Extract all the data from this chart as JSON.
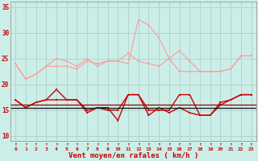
{
  "bg_color": "#cceee8",
  "grid_color": "#b0d0cc",
  "xlabel": "Vent moyen/en rafales ( km/h )",
  "xlim": [
    -0.5,
    23.5
  ],
  "ylim": [
    9,
    36
  ],
  "yticks": [
    10,
    15,
    20,
    25,
    30,
    35
  ],
  "xticks": [
    0,
    1,
    2,
    3,
    4,
    5,
    6,
    7,
    8,
    9,
    10,
    11,
    12,
    13,
    14,
    15,
    16,
    17,
    18,
    19,
    20,
    21,
    22,
    23
  ],
  "hours": [
    0,
    1,
    2,
    3,
    4,
    5,
    6,
    7,
    8,
    9,
    10,
    11,
    12,
    13,
    14,
    15,
    16,
    17,
    18,
    19,
    20,
    21,
    22,
    23
  ],
  "line1": [
    24.0,
    21.0,
    22.0,
    23.5,
    25.0,
    24.5,
    23.5,
    25.0,
    23.5,
    24.5,
    24.5,
    24.0,
    32.5,
    31.5,
    29.0,
    25.0,
    26.5,
    24.5,
    22.5,
    22.5,
    22.5,
    23.0,
    25.5,
    25.5
  ],
  "line2": [
    24.0,
    21.0,
    22.0,
    23.5,
    23.5,
    23.5,
    23.0,
    24.5,
    24.0,
    24.5,
    24.5,
    26.0,
    24.5,
    24.0,
    23.5,
    25.0,
    22.5,
    22.5,
    22.5,
    22.5,
    22.5,
    23.0,
    25.5,
    25.5
  ],
  "line3": [
    17.0,
    15.5,
    16.5,
    17.0,
    19.0,
    17.0,
    17.0,
    14.5,
    15.5,
    15.5,
    13.0,
    18.0,
    18.0,
    14.0,
    15.5,
    14.5,
    15.5,
    14.5,
    14.0,
    14.0,
    16.5,
    17.0,
    18.0,
    18.0
  ],
  "line4": [
    17.0,
    15.5,
    16.5,
    17.0,
    17.0,
    17.0,
    17.0,
    15.0,
    15.5,
    15.0,
    15.0,
    18.0,
    18.0,
    15.0,
    15.0,
    15.0,
    18.0,
    18.0,
    14.0,
    14.0,
    16.0,
    17.0,
    18.0,
    18.0
  ],
  "line5_flat": 15.5,
  "line6_flat": 16.0,
  "color_light": "#ff9999",
  "color_dark": "#cc0000",
  "color_black": "#111111",
  "color_darkred": "#990000",
  "lw_light": 0.8,
  "lw_dark": 1.0,
  "lw_flat": 0.9,
  "marker_size": 2.0
}
